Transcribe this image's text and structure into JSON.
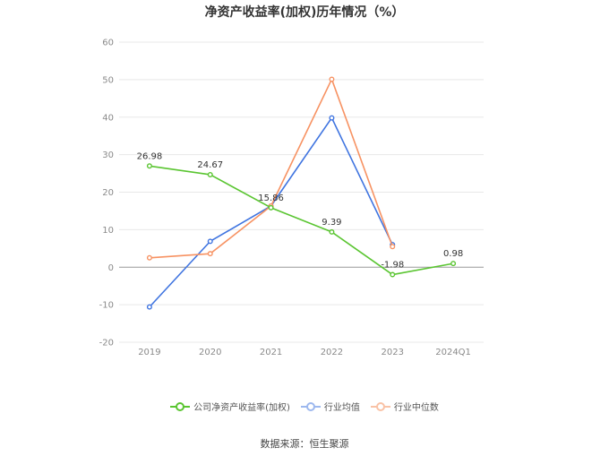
{
  "chart_data": {
    "type": "line",
    "title": "净资产收益率(加权)历年情况（%）",
    "categories": [
      "2019",
      "2020",
      "2021",
      "2022",
      "2023",
      "2024Q1"
    ],
    "ylim": [
      -20,
      60
    ],
    "yticks": [
      60,
      50,
      40,
      30,
      20,
      10,
      0,
      -10,
      -20
    ],
    "grid": true,
    "legend_position": "bottom",
    "series": [
      {
        "name": "公司净资产收益率(加权)",
        "color": "#5ac531",
        "values": [
          26.98,
          24.67,
          15.86,
          9.39,
          -1.98,
          0.98
        ],
        "labels": [
          "26.98",
          "24.67",
          "15.86",
          "9.39",
          "-1.98",
          "0.98"
        ]
      },
      {
        "name": "行业均值",
        "color": "#3f74e0",
        "values": [
          -10.6,
          6.9,
          16.3,
          39.8,
          6.0,
          null
        ]
      },
      {
        "name": "行业中位数",
        "color": "#f79262",
        "values": [
          2.5,
          3.6,
          16.3,
          50.1,
          5.5,
          null
        ]
      }
    ]
  },
  "source_text": "数据来源：恒生聚源"
}
